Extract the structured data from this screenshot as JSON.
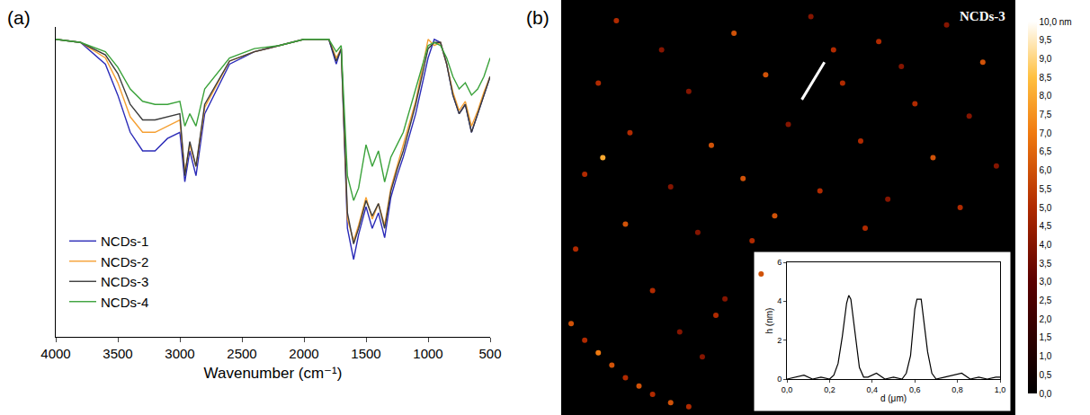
{
  "chart_data": [
    {
      "type": "line",
      "annotations": [
        "(a)"
      ],
      "x_label": "Wavenumber (cm⁻¹)",
      "x": [
        4000,
        3800,
        3600,
        3500,
        3400,
        3300,
        3200,
        3100,
        3000,
        2960,
        2920,
        2870,
        2800,
        2600,
        2400,
        2200,
        2000,
        1800,
        1740,
        1700,
        1650,
        1600,
        1560,
        1500,
        1450,
        1400,
        1350,
        1300,
        1250,
        1200,
        1100,
        1000,
        950,
        900,
        850,
        800,
        750,
        700,
        650,
        600,
        550,
        500
      ],
      "xlim": [
        4000,
        500
      ],
      "xticks": [
        4000,
        3500,
        3000,
        2500,
        2000,
        1500,
        1000,
        500
      ],
      "ylim": [
        0,
        100
      ],
      "tick_labels": "x",
      "grid": false,
      "legend": "lower left",
      "series": [
        {
          "name": "NCDs-1",
          "color": "#2b2bb8",
          "values": [
            96,
            95,
            88,
            78,
            66,
            60,
            60,
            64,
            66,
            50,
            60,
            52,
            72,
            88,
            92,
            94,
            96,
            96,
            88,
            93,
            35,
            25,
            33,
            42,
            35,
            40,
            32,
            45,
            52,
            58,
            72,
            90,
            96,
            95,
            88,
            78,
            72,
            75,
            66,
            72,
            78,
            84
          ]
        },
        {
          "name": "NCDs-2",
          "color": "#f5a033",
          "values": [
            96,
            95,
            90,
            82,
            71,
            66,
            66,
            68,
            70,
            53,
            62,
            55,
            74,
            89,
            92,
            94,
            96,
            96,
            90,
            93,
            38,
            31,
            36,
            45,
            38,
            43,
            36,
            48,
            55,
            62,
            76,
            96,
            94,
            95,
            88,
            79,
            73,
            76,
            68,
            73,
            79,
            84
          ]
        },
        {
          "name": "NCDs-3",
          "color": "#3c3c3c",
          "values": [
            96,
            95,
            91,
            85,
            75,
            70,
            70,
            71,
            72,
            52,
            63,
            55,
            75,
            89,
            92,
            94,
            96,
            96,
            89,
            93,
            40,
            30,
            35,
            44,
            39,
            43,
            35,
            47,
            54,
            60,
            75,
            93,
            95,
            95,
            88,
            78,
            72,
            75,
            66,
            72,
            78,
            84
          ]
        },
        {
          "name": "NCDs-4",
          "color": "#3aa23a",
          "values": [
            96,
            95,
            92,
            87,
            80,
            76,
            75,
            75,
            76,
            68,
            72,
            68,
            80,
            90,
            93,
            94,
            96,
            96,
            92,
            94,
            52,
            44,
            48,
            62,
            55,
            60,
            50,
            58,
            62,
            66,
            80,
            94,
            95,
            94,
            90,
            84,
            80,
            82,
            78,
            80,
            84,
            90
          ]
        }
      ]
    },
    {
      "type": "scatter",
      "annotations": [
        "(b)"
      ],
      "title": "NCDs-3",
      "marker": "circle",
      "tick_labels": false,
      "grid": false,
      "xlim": [
        0,
        100
      ],
      "ylim": [
        0,
        100
      ],
      "x": [
        12,
        22,
        38,
        55,
        70,
        85,
        93,
        8,
        28,
        45,
        62,
        78,
        90,
        15,
        33,
        50,
        66,
        82,
        96,
        5,
        24,
        40,
        57,
        72,
        88,
        14,
        30,
        42,
        9,
        20,
        36,
        44,
        60,
        75,
        3,
        26,
        47,
        67,
        2,
        5,
        8,
        11,
        14,
        17,
        20,
        24,
        28,
        31,
        34
      ],
      "y": [
        95,
        88,
        92,
        96,
        90,
        94,
        85,
        80,
        78,
        82,
        80,
        75,
        72,
        68,
        65,
        70,
        66,
        62,
        60,
        58,
        55,
        57,
        54,
        52,
        50,
        46,
        44,
        42,
        62,
        30,
        28,
        34,
        88,
        84,
        40,
        20,
        48,
        45,
        22,
        18,
        15,
        12,
        9,
        7,
        5,
        3,
        2,
        14,
        24
      ],
      "values": [
        5,
        4,
        6,
        4,
        5,
        4,
        6,
        5,
        4,
        6,
        5,
        5,
        4,
        5,
        6,
        4,
        5,
        6,
        4,
        5,
        4,
        6,
        5,
        4,
        5,
        6,
        4,
        5,
        8,
        5,
        4,
        6,
        5,
        4,
        5,
        4,
        6,
        5,
        6,
        5,
        7,
        6,
        5,
        6,
        5,
        6,
        5,
        4,
        5
      ],
      "colorbar": {
        "range": [
          0,
          10
        ],
        "ticks": [
          {
            "value": 0,
            "label": "0,0"
          },
          {
            "value": 0.5,
            "label": "0,5"
          },
          {
            "value": 1,
            "label": "1,0"
          },
          {
            "value": 1.5,
            "label": "1,5"
          },
          {
            "value": 2,
            "label": "2,0"
          },
          {
            "value": 2.5,
            "label": "2,5"
          },
          {
            "value": 3,
            "label": "3,0"
          },
          {
            "value": 3.5,
            "label": "3,5"
          },
          {
            "value": 4,
            "label": "4,0"
          },
          {
            "value": 4.5,
            "label": "4,5"
          },
          {
            "value": 5,
            "label": "5,0"
          },
          {
            "value": 5.5,
            "label": "5,5"
          },
          {
            "value": 6,
            "label": "6,0"
          },
          {
            "value": 6.5,
            "label": "6,5"
          },
          {
            "value": 7,
            "label": "7,0"
          },
          {
            "value": 7.5,
            "label": "7,5"
          },
          {
            "value": 8,
            "label": "8,0"
          },
          {
            "value": 8.5,
            "label": "8,5"
          },
          {
            "value": 9,
            "label": "9,0"
          },
          {
            "value": 9.5,
            "label": "9,5"
          },
          {
            "value": 10,
            "label": "10,0 nm"
          }
        ]
      }
    },
    {
      "type": "line",
      "x_label": "d (μm)",
      "y_label": "h (nm)",
      "x": [
        0,
        0.04,
        0.08,
        0.12,
        0.16,
        0.2,
        0.22,
        0.24,
        0.26,
        0.28,
        0.29,
        0.3,
        0.32,
        0.34,
        0.36,
        0.38,
        0.42,
        0.46,
        0.5,
        0.54,
        0.56,
        0.58,
        0.6,
        0.61,
        0.63,
        0.64,
        0.66,
        0.68,
        0.7,
        0.74,
        0.78,
        0.82,
        0.86,
        0.9,
        0.94,
        0.98,
        1.0
      ],
      "values": [
        0,
        0.1,
        0.2,
        0,
        0.1,
        0,
        0.2,
        0.8,
        2.2,
        3.9,
        4.3,
        4.1,
        2.2,
        0.6,
        0.1,
        0.1,
        0.3,
        0,
        0.1,
        0,
        0.3,
        1.2,
        3.6,
        4.1,
        4.1,
        3.2,
        1.4,
        0.3,
        0,
        0.1,
        0.2,
        0.3,
        0,
        0.1,
        0,
        0.1,
        0.1
      ],
      "color": "#000000",
      "xlim": [
        0,
        1
      ],
      "xticks": [
        {
          "value": 0,
          "label": "0,0"
        },
        {
          "value": 0.2,
          "label": "0,2"
        },
        {
          "value": 0.4,
          "label": "0,4"
        },
        {
          "value": 0.6,
          "label": "0,6"
        },
        {
          "value": 0.8,
          "label": "0,8"
        },
        {
          "value": 1,
          "label": "1,0"
        }
      ],
      "ylim": [
        0,
        6
      ],
      "yticks": [
        0,
        2,
        4,
        6
      ],
      "grid": false
    }
  ]
}
